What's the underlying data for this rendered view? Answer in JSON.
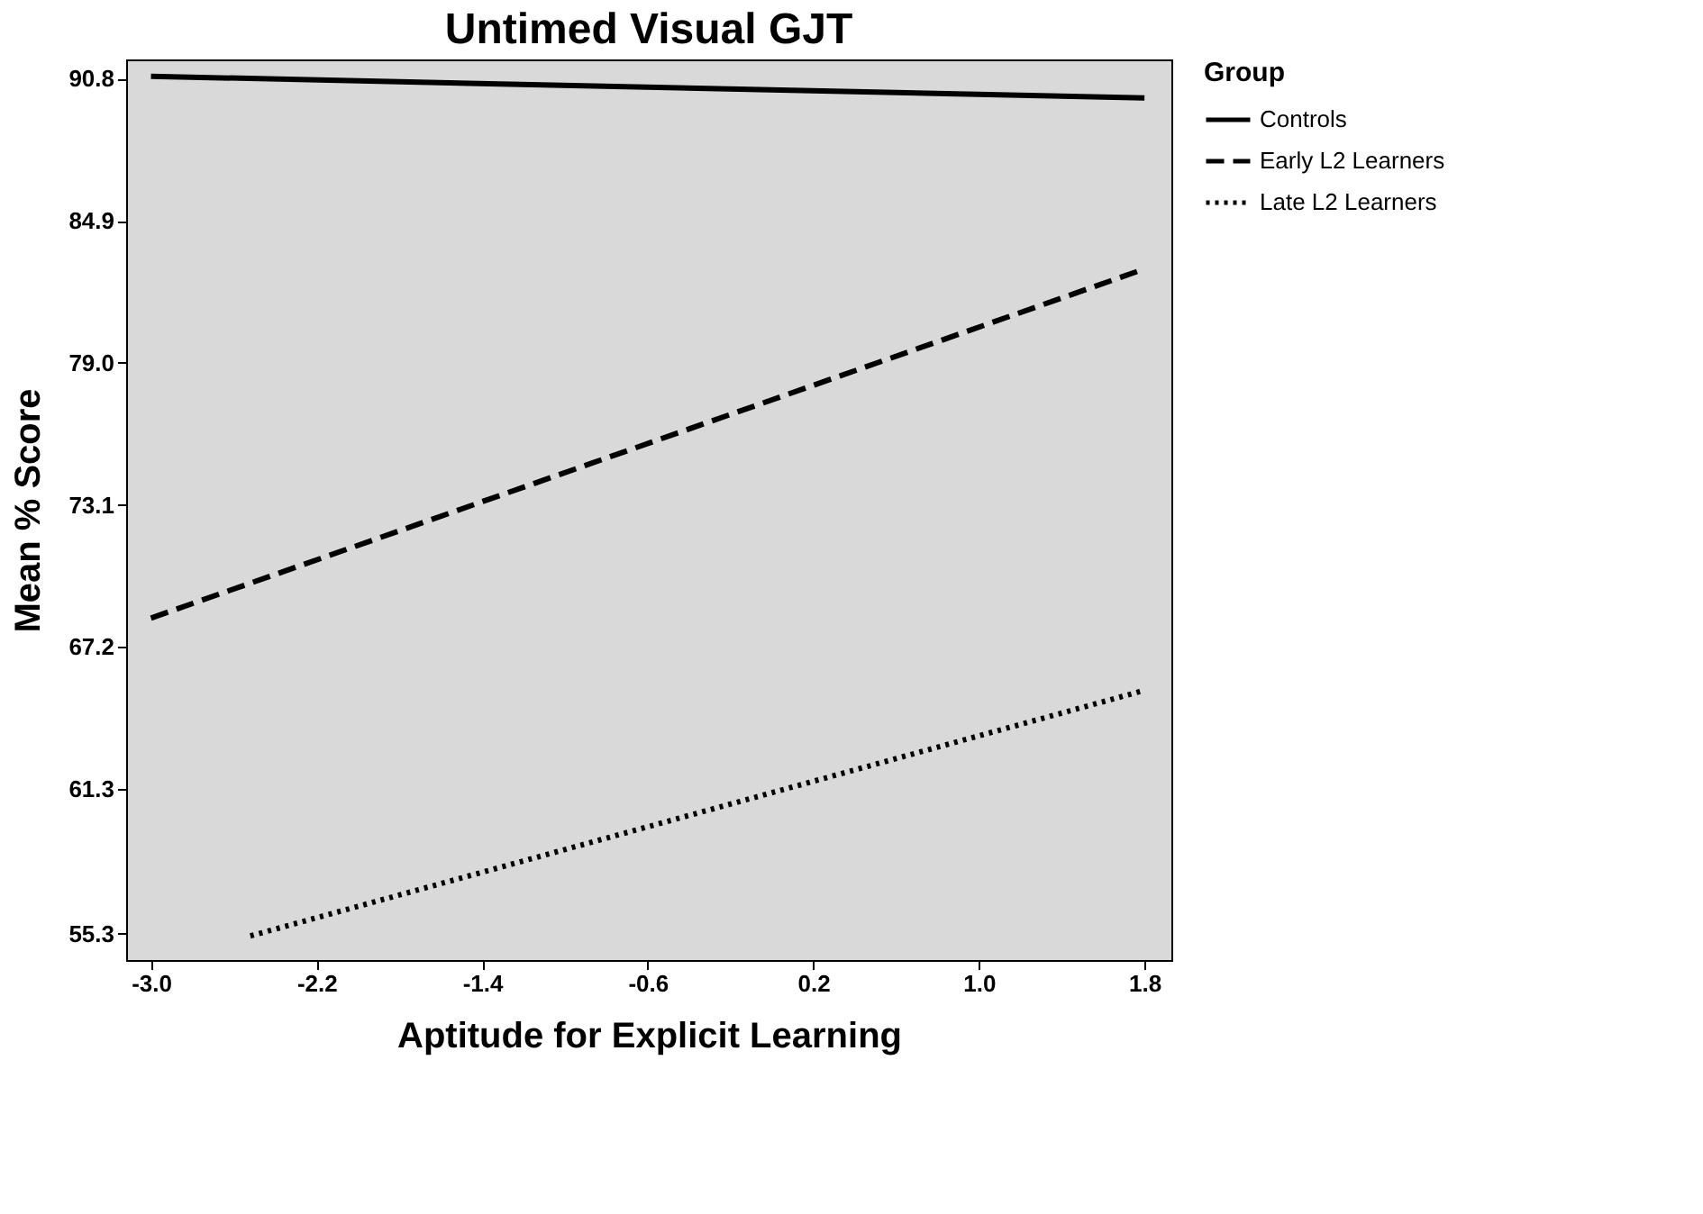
{
  "chart_data": {
    "type": "line",
    "title": "Untimed Visual GJT",
    "xlabel": "Aptitude for Explicit Learning",
    "ylabel": "Mean % Score",
    "legend_title": "Group",
    "legend": "right",
    "grid": false,
    "marker": "none",
    "xlim": [
      -3.12,
      1.93
    ],
    "xticks": [
      {
        "value": -3,
        "label": "-3.0"
      },
      -2.2,
      -1.4,
      -0.6,
      0.2,
      {
        "value": 1,
        "label": "1.0"
      },
      1.8
    ],
    "ylim": [
      54.2,
      91.6
    ],
    "yticks": [
      55.3,
      61.3,
      67.2,
      73.1,
      {
        "value": 79,
        "label": "79.0"
      },
      84.9,
      90.8
    ],
    "series": [
      {
        "name": "Controls",
        "color": "#000000",
        "line_style": "solid",
        "x": [
          -3.0,
          1.8
        ],
        "values": [
          90.9,
          90.0
        ]
      },
      {
        "name": "Early L2 Learners",
        "color": "#000000",
        "line_style": "dashed",
        "x": [
          -3.0,
          1.8
        ],
        "values": [
          68.4,
          82.9
        ]
      },
      {
        "name": "Late L2 Learners",
        "color": "#000000",
        "line_style": "dotted",
        "x": [
          -2.52,
          1.8
        ],
        "values": [
          55.2,
          65.4
        ]
      }
    ]
  }
}
